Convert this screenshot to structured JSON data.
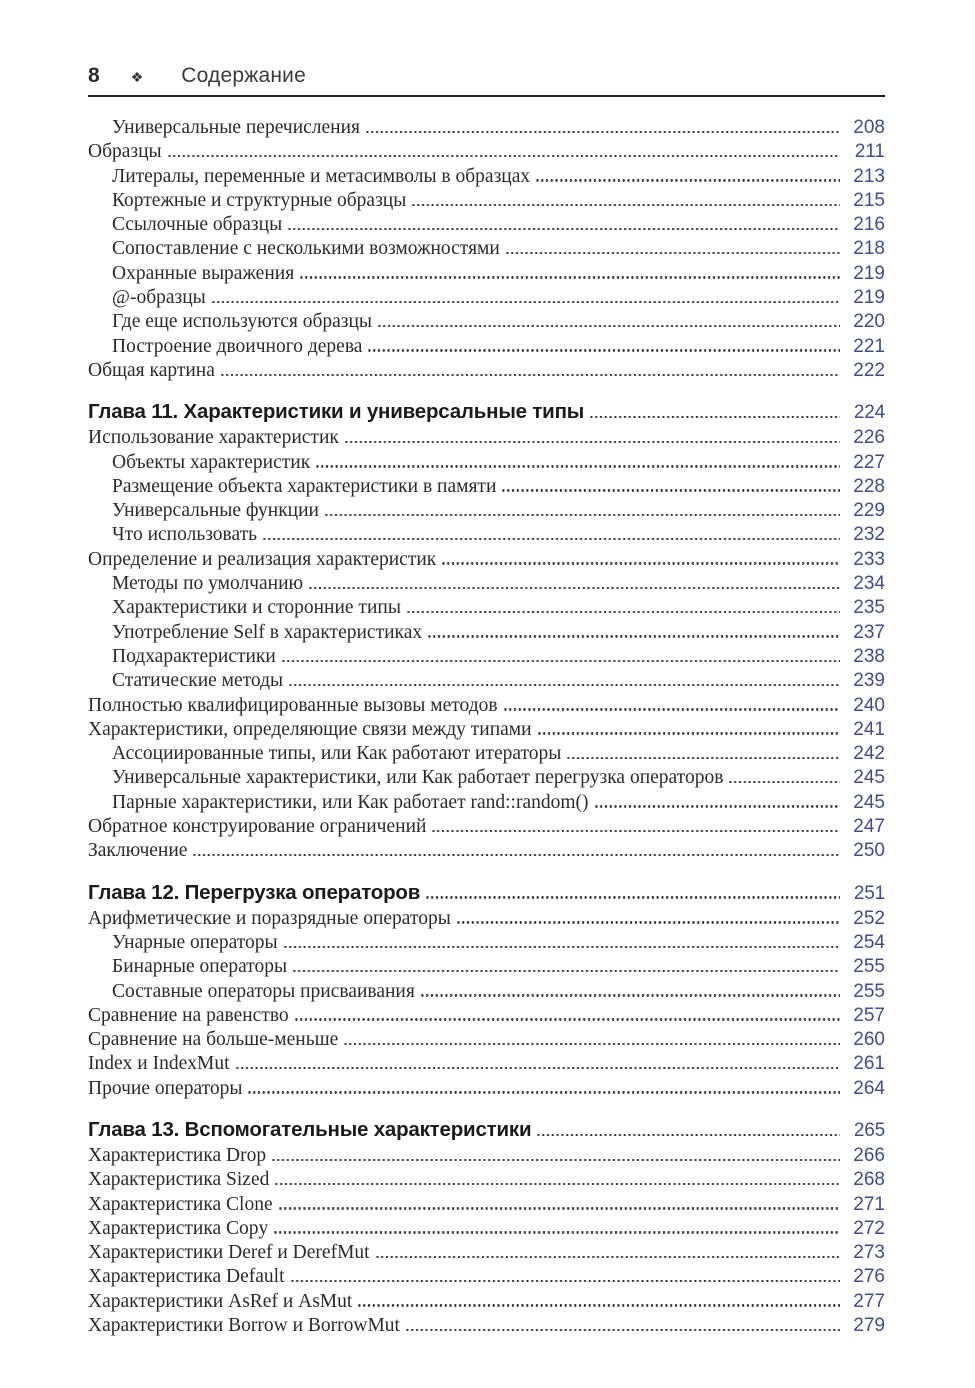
{
  "header": {
    "page_number": "8",
    "separator_icon": "❖",
    "title": "Содержание"
  },
  "colors": {
    "page_number_accent": "#414b8d",
    "text": "#2b2b2b",
    "leader_dots": "#3b3b3b"
  },
  "toc": {
    "sections": [
      {
        "heading": null,
        "entries": [
          {
            "label": "Универсальные перечисления",
            "page": "208",
            "indent": 1
          },
          {
            "label": "Образцы",
            "page": "211",
            "indent": 0
          },
          {
            "label": "Литералы, переменные и метасимволы в образцах",
            "page": "213",
            "indent": 1
          },
          {
            "label": "Кортежные и структурные образцы",
            "page": "215",
            "indent": 1
          },
          {
            "label": "Ссылочные образцы",
            "page": "216",
            "indent": 1
          },
          {
            "label": "Сопоставление с несколькими возможностями",
            "page": "218",
            "indent": 1
          },
          {
            "label": "Охранные выражения",
            "page": "219",
            "indent": 1
          },
          {
            "label": "@-образцы",
            "page": "219",
            "indent": 1
          },
          {
            "label": "Где еще используются образцы",
            "page": "220",
            "indent": 1
          },
          {
            "label": "Построение двоичного дерева",
            "page": "221",
            "indent": 1
          },
          {
            "label": "Общая картина",
            "page": "222",
            "indent": 0
          }
        ]
      },
      {
        "heading": {
          "label": "Глава 11. Характеристики и универсальные типы",
          "page": "224"
        },
        "entries": [
          {
            "label": "Использование характеристик",
            "page": "226",
            "indent": 0
          },
          {
            "label": "Объекты характеристик",
            "page": "227",
            "indent": 1
          },
          {
            "label": "Размещение объекта характеристики в памяти",
            "page": "228",
            "indent": 1
          },
          {
            "label": "Универсальные функции",
            "page": "229",
            "indent": 1
          },
          {
            "label": "Что использовать",
            "page": "232",
            "indent": 1
          },
          {
            "label": "Определение и реализация характеристик",
            "page": "233",
            "indent": 0
          },
          {
            "label": "Методы по умолчанию",
            "page": "234",
            "indent": 1
          },
          {
            "label": "Характеристики и сторонние типы",
            "page": "235",
            "indent": 1
          },
          {
            "label": "Употребление Self в характеристиках",
            "page": "237",
            "indent": 1
          },
          {
            "label": "Подхарактеристики",
            "page": "238",
            "indent": 1
          },
          {
            "label": "Статические методы",
            "page": "239",
            "indent": 1
          },
          {
            "label": "Полностью квалифицированные вызовы методов",
            "page": "240",
            "indent": 0
          },
          {
            "label": "Характеристики, определяющие связи между типами",
            "page": "241",
            "indent": 0
          },
          {
            "label": "Ассоциированные типы, или Как работают итераторы",
            "page": "242",
            "indent": 1
          },
          {
            "label": "Универсальные характеристики, или Как работает перегрузка операторов",
            "page": "245",
            "indent": 1
          },
          {
            "label": "Парные характеристики, или Как работает rand::random()",
            "page": "245",
            "indent": 1
          },
          {
            "label": "Обратное конструирование ограничений",
            "page": "247",
            "indent": 0
          },
          {
            "label": "Заключение",
            "page": "250",
            "indent": 0
          }
        ]
      },
      {
        "heading": {
          "label": "Глава 12. Перегрузка операторов",
          "page": "251"
        },
        "entries": [
          {
            "label": "Арифметические и поразрядные операторы",
            "page": "252",
            "indent": 0
          },
          {
            "label": "Унарные операторы",
            "page": "254",
            "indent": 1
          },
          {
            "label": "Бинарные операторы",
            "page": "255",
            "indent": 1
          },
          {
            "label": "Составные операторы присваивания",
            "page": "255",
            "indent": 1
          },
          {
            "label": "Сравнение на равенство",
            "page": "257",
            "indent": 0
          },
          {
            "label": "Сравнение на больше-меньше",
            "page": "260",
            "indent": 0
          },
          {
            "label": "Index и IndexMut",
            "page": "261",
            "indent": 0
          },
          {
            "label": "Прочие операторы",
            "page": "264",
            "indent": 0
          }
        ]
      },
      {
        "heading": {
          "label": "Глава 13. Вспомогательные характеристики",
          "page": "265"
        },
        "entries": [
          {
            "label": "Характеристика Drop",
            "page": "266",
            "indent": 0
          },
          {
            "label": "Характеристика Sized",
            "page": "268",
            "indent": 0
          },
          {
            "label": "Характеристика Clone",
            "page": "271",
            "indent": 0
          },
          {
            "label": "Характеристика Copy",
            "page": "272",
            "indent": 0
          },
          {
            "label": "Характеристики Deref и DerefMut",
            "page": "273",
            "indent": 0
          },
          {
            "label": "Характеристика Default",
            "page": "276",
            "indent": 0
          },
          {
            "label": "Характеристики AsRef и AsMut",
            "page": "277",
            "indent": 0
          },
          {
            "label": "Характеристики Borrow и BorrowMut",
            "page": "279",
            "indent": 0
          }
        ]
      }
    ]
  }
}
